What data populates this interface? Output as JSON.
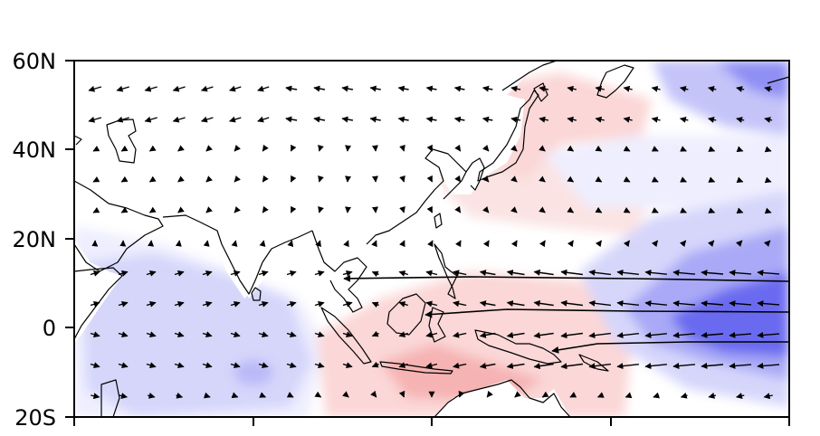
{
  "map": {
    "lat_labels": [
      "60N",
      "40N",
      "20N",
      "0",
      "20S"
    ],
    "colors": {
      "strong_blue": "#6b6bf0",
      "mid_blue": "#a9a9f7",
      "light_blue": "#d6d6fb",
      "faint_blue": "#eeeefe",
      "light_red": "#fbd7d7",
      "mid_red": "#f6b3b3",
      "frame": "#000000"
    }
  }
}
